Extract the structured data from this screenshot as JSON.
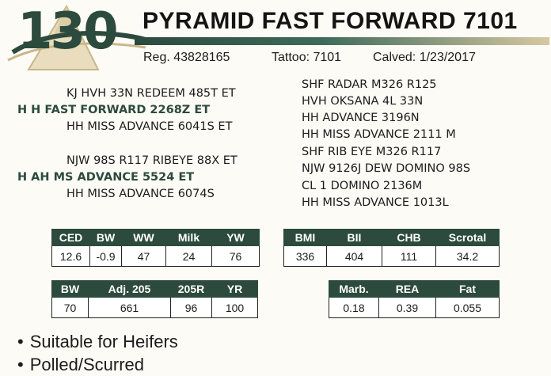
{
  "lot": "130",
  "name": "PYRAMID FAST FORWARD 7101",
  "reg": "Reg. 43828165",
  "tattoo": "Tattoo: 7101",
  "calved": "Calved:  1/23/2017",
  "pedigree": {
    "sire": "H H FAST FORWARD 2268Z ET",
    "sire_sire": "KJ HVH 33N REDEEM 485T ET",
    "sire_dam": "HH MISS ADVANCE 6041S ET",
    "dam": "H AH MS ADVANCE 5524 ET",
    "dam_sire": "NJW 98S R117 RIBEYE 88X ET",
    "dam_dam": "HH MISS ADVANCE 6074S",
    "ancestors": [
      "SHF RADAR M326 R125",
      "HVH OKSANA 4L 33N",
      "HH ADVANCE 3196N",
      "HH MISS ADVANCE 2111 M",
      "SHF RIB EYE M326 R117",
      "NJW 9126J DEW DOMINO 98S",
      "CL 1 DOMINO 2136M",
      "HH MISS ADVANCE 1013L"
    ]
  },
  "epd_table_1": {
    "headers": [
      "CED",
      "BW",
      "WW",
      "Milk",
      "YW"
    ],
    "values": [
      "12.6",
      "-0.9",
      "47",
      "24",
      "76"
    ]
  },
  "epd_table_2": {
    "headers": [
      "BMI",
      "BII",
      "CHB",
      "Scrotal"
    ],
    "values": [
      "336",
      "404",
      "111",
      "34.2"
    ]
  },
  "perf_table_1": {
    "headers": [
      "BW",
      "Adj. 205",
      "205R",
      "YR"
    ],
    "values": [
      "70",
      "661",
      "96",
      "100"
    ]
  },
  "perf_table_2": {
    "headers": [
      "Marb.",
      "REA",
      "Fat"
    ],
    "values": [
      "0.18",
      "0.39",
      "0.055"
    ]
  },
  "features": [
    "Suitable for Heifers",
    "Polled/Scurred"
  ],
  "colors": {
    "accent": "#2c4a3e",
    "gold": "#c9b78a"
  }
}
